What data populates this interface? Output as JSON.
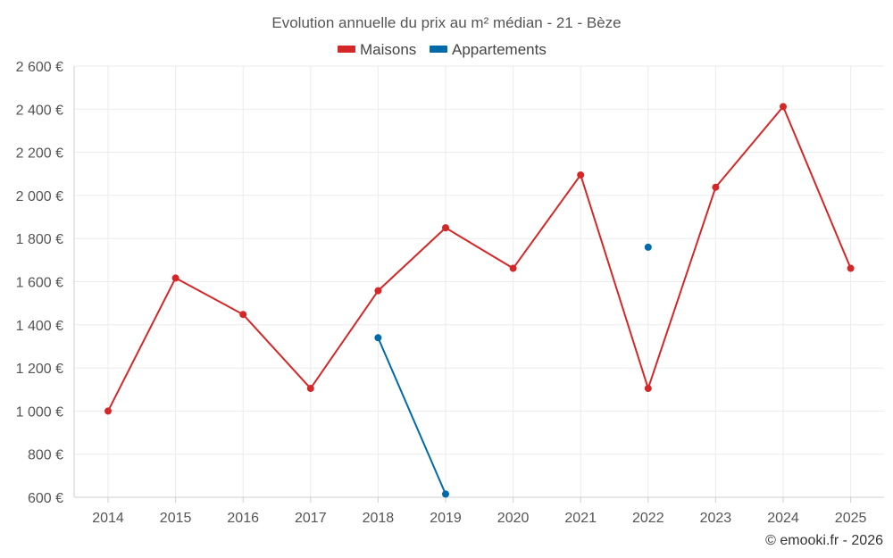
{
  "chart_data": {
    "type": "line",
    "title": "Evolution annuelle du prix au m² médian - 21 - Bèze",
    "categories": [
      "2014",
      "2015",
      "2016",
      "2017",
      "2018",
      "2019",
      "2020",
      "2021",
      "2022",
      "2023",
      "2024",
      "2025"
    ],
    "series": [
      {
        "name": "Maisons",
        "color": "#d62728",
        "values": [
          1000,
          1617,
          1448,
          1105,
          1558,
          1850,
          1662,
          2095,
          1105,
          2038,
          2412,
          1662
        ]
      },
      {
        "name": "Appartements",
        "color": "#006ba8",
        "values": [
          null,
          null,
          null,
          null,
          1340,
          615,
          null,
          null,
          1760,
          null,
          null,
          null
        ]
      }
    ],
    "ylim": [
      600,
      2600
    ],
    "yticks": [
      600,
      800,
      1000,
      1200,
      1400,
      1600,
      1800,
      2000,
      2200,
      2400,
      2600
    ],
    "ytick_labels": [
      "600 €",
      "800 €",
      "1 000 €",
      "1 200 €",
      "1 400 €",
      "1 600 €",
      "1 800 €",
      "2 000 €",
      "2 200 €",
      "2 400 €",
      "2 600 €"
    ],
    "xlabel": "",
    "ylabel": "",
    "grid": true,
    "legend_position": "top-center"
  },
  "credit": "© emooki.fr - 2026"
}
